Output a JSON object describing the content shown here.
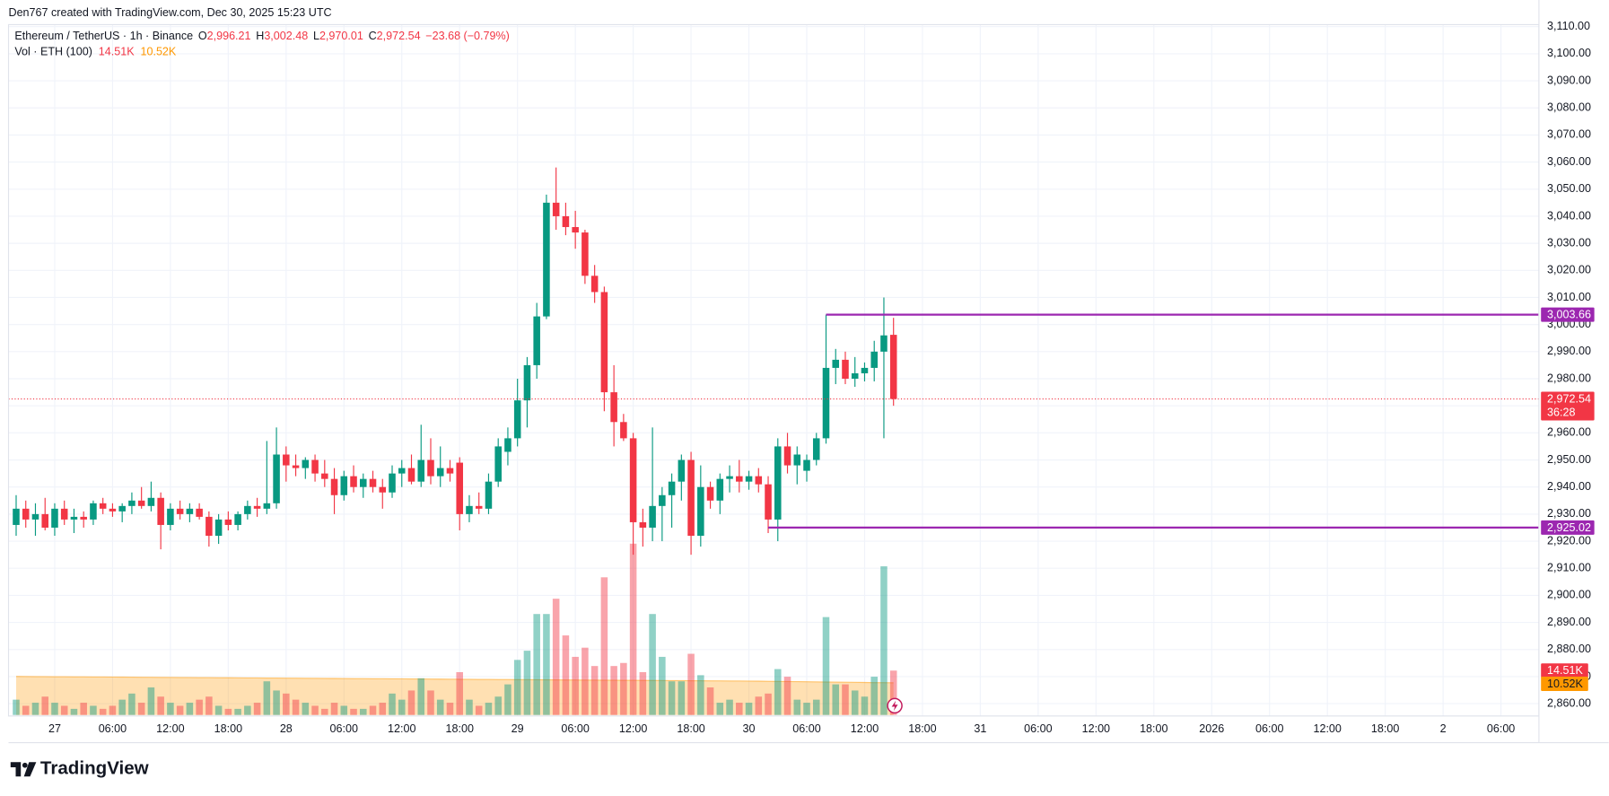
{
  "page": {
    "credit": "Den767 created with TradingView.com, Dec 30, 2025 15:23 UTC",
    "brand": "TradingView"
  },
  "chart_data": {
    "type": "candlestick",
    "symbol": "Ethereum / TetherUS · 1h · Binance",
    "ohlc_legend": [
      {
        "key": "O",
        "value": "2,996.21"
      },
      {
        "key": "H",
        "value": "3,002.48"
      },
      {
        "key": "L",
        "value": "2,970.01"
      },
      {
        "key": "C",
        "value": "2,972.54"
      }
    ],
    "change": "−23.68 (−0.79%)",
    "up_color": "#089981",
    "down_color": "#f23645",
    "open": [
      2926,
      2932,
      2928,
      2930,
      2925,
      2932,
      2928,
      2929,
      2928,
      2934,
      2932,
      2931,
      2933,
      2935,
      2933,
      2936,
      2926,
      2932,
      2930,
      2932,
      2929,
      2922,
      2928,
      2926,
      2930,
      2933,
      2932,
      2934,
      2952,
      2948,
      2947,
      2950,
      2945,
      2943,
      2937,
      2944,
      2940,
      2943,
      2940,
      2938,
      2945,
      2947,
      2942,
      2950,
      2944,
      2947,
      2949,
      2930,
      2933,
      2932,
      2942,
      2953,
      2958,
      2972,
      2985,
      3003,
      3045,
      3040,
      3036,
      3034,
      3018,
      3012,
      2975,
      2964,
      2958,
      2927,
      2925,
      2933,
      2937,
      2942,
      2950,
      2922,
      2940,
      2935,
      2943,
      2944,
      2942,
      2944,
      2941,
      2928,
      2955,
      2948,
      2946,
      2950,
      2958,
      2984,
      2987,
      2980,
      2982,
      2984,
      2990,
      2996.21
    ],
    "high": [
      2937,
      2935,
      2934,
      2936,
      2934,
      2935,
      2932,
      2931,
      2935,
      2936,
      2934,
      2934,
      2938,
      2940,
      2942,
      2938,
      2934,
      2935,
      2934,
      2934,
      2931,
      2930,
      2931,
      2931,
      2935,
      2936,
      2957,
      2962,
      2955,
      2952,
      2951,
      2952,
      2950,
      2947,
      2946,
      2948,
      2945,
      2946,
      2943,
      2948,
      2950,
      2952,
      2963,
      2958,
      2955,
      2950,
      2951,
      2937,
      2938,
      2945,
      2958,
      2962,
      2980,
      2988,
      3008,
      3048,
      3058,
      3045,
      3042,
      3035,
      3022,
      3014,
      2985,
      2967,
      2960,
      2932,
      2962,
      2940,
      2945,
      2952,
      2953,
      2948,
      2942,
      2945,
      2948,
      2950,
      2946,
      2947,
      2944,
      2958,
      2960,
      2955,
      2952,
      2960,
      3003.66,
      2991,
      2990,
      2988,
      2986,
      2994,
      3010,
      3002.48
    ],
    "low": [
      2922,
      2925,
      2922,
      2924,
      2922,
      2926,
      2923,
      2925,
      2926,
      2930,
      2929,
      2927,
      2930,
      2932,
      2931,
      2917,
      2924,
      2928,
      2927,
      2928,
      2918,
      2919,
      2924,
      2924,
      2928,
      2929,
      2930,
      2932,
      2942,
      2944,
      2943,
      2942,
      2940,
      2930,
      2935,
      2938,
      2936,
      2938,
      2932,
      2936,
      2940,
      2941,
      2940,
      2941,
      2940,
      2942,
      2924,
      2927,
      2930,
      2930,
      2940,
      2948,
      2955,
      2962,
      2980,
      3002,
      3035,
      3033,
      3028,
      3015,
      3008,
      2968,
      2955,
      2957,
      2915,
      2918,
      2920,
      2920,
      2925,
      2935,
      2915,
      2918,
      2932,
      2930,
      2938,
      2938,
      2939,
      2938,
      2923,
      2920,
      2945,
      2941,
      2942,
      2948,
      2956,
      2978,
      2978,
      2977,
      2979,
      2979,
      2958,
      2970.01
    ],
    "close": [
      2932,
      2928,
      2930,
      2925,
      2932,
      2928,
      2929,
      2928,
      2934,
      2932,
      2931,
      2933,
      2935,
      2933,
      2936,
      2926,
      2932,
      2930,
      2932,
      2929,
      2922,
      2928,
      2926,
      2930,
      2933,
      2932,
      2934,
      2952,
      2948,
      2947,
      2950,
      2945,
      2943,
      2937,
      2944,
      2940,
      2943,
      2940,
      2938,
      2945,
      2947,
      2942,
      2950,
      2944,
      2947,
      2945,
      2930,
      2933,
      2932,
      2942,
      2955,
      2958,
      2972,
      2985,
      3003,
      3045,
      3040,
      3036,
      3034,
      3018,
      3012,
      2975,
      2964,
      2958,
      2927,
      2925,
      2933,
      2937,
      2942,
      2950,
      2922,
      2940,
      2935,
      2943,
      2944,
      2942,
      2944,
      2941,
      2928,
      2955,
      2948,
      2952,
      2950,
      2958,
      2984,
      2987,
      2980,
      2982,
      2984,
      2990,
      2996,
      2972.54
    ],
    "volume": {
      "name": "Vol · ETH (100)",
      "last_label": "14.51K",
      "ma_label": "10.52K",
      "ma_color": "#ff9800",
      "values": [
        5,
        3,
        4,
        6,
        4,
        3,
        2,
        4,
        3,
        2,
        3,
        5,
        7,
        4,
        9,
        6,
        4,
        3,
        4,
        5,
        6,
        3,
        2,
        2,
        3,
        4,
        11,
        8,
        7,
        5,
        4,
        3,
        2,
        4,
        3,
        2,
        2,
        3,
        4,
        7,
        5,
        8,
        12,
        8,
        5,
        4,
        14,
        5,
        3,
        4,
        6,
        10,
        18,
        21,
        33,
        33,
        38,
        26,
        19,
        22,
        16,
        45,
        16,
        17,
        56,
        14,
        33,
        19,
        11,
        11,
        20,
        13,
        9,
        4,
        5,
        4,
        4,
        6,
        7,
        15,
        12.5,
        5,
        4,
        5,
        32,
        10,
        10,
        8,
        6,
        12.5,
        48.6,
        14.51
      ],
      "ma": [
        12.6,
        12.58,
        12.56,
        12.54,
        12.52,
        12.5,
        12.48,
        12.46,
        12.44,
        12.42,
        12.4,
        12.38,
        12.36,
        12.34,
        12.32,
        12.3,
        12.28,
        12.26,
        12.24,
        12.22,
        12.2,
        12.18,
        12.16,
        12.14,
        12.12,
        12.1,
        12.08,
        12.06,
        12.04,
        12.02,
        12,
        11.98,
        11.96,
        11.94,
        11.92,
        11.9,
        11.88,
        11.86,
        11.84,
        11.82,
        11.8,
        11.78,
        11.76,
        11.74,
        11.72,
        11.7,
        11.68,
        11.66,
        11.64,
        11.62,
        11.6,
        11.58,
        11.56,
        11.54,
        11.52,
        11.5,
        11.48,
        11.46,
        11.44,
        11.42,
        11.4,
        11.38,
        11.36,
        11.34,
        11.32,
        11.3,
        11.28,
        11.26,
        11.24,
        11.22,
        11.2,
        11.18,
        11.16,
        11.14,
        11.12,
        11.1,
        11.08,
        11.06,
        11.02,
        10.98,
        10.94,
        10.9,
        10.86,
        10.82,
        10.78,
        10.74,
        10.7,
        10.66,
        10.62,
        10.58,
        10.55,
        10.52
      ]
    },
    "levels": [
      {
        "value": 3003.66,
        "label": "3,003.66",
        "from": 84,
        "color": "#9c27b0"
      },
      {
        "value": 2925.02,
        "label": "2,925.02",
        "from": 78,
        "color": "#9c27b0"
      }
    ],
    "last_price_label": "2,972.54",
    "countdown": "36:28",
    "xlim": [
      -0.79,
      157.94
    ],
    "xticks": [
      {
        "value": 4,
        "label": "27"
      },
      {
        "value": 10,
        "label": "06:00"
      },
      {
        "value": 16,
        "label": "12:00"
      },
      {
        "value": 22,
        "label": "18:00"
      },
      {
        "value": 28,
        "label": "28"
      },
      {
        "value": 34,
        "label": "06:00"
      },
      {
        "value": 40,
        "label": "12:00"
      },
      {
        "value": 46,
        "label": "18:00"
      },
      {
        "value": 52,
        "label": "29"
      },
      {
        "value": 58,
        "label": "06:00"
      },
      {
        "value": 64,
        "label": "12:00"
      },
      {
        "value": 70,
        "label": "18:00"
      },
      {
        "value": 76,
        "label": "30"
      },
      {
        "value": 82,
        "label": "06:00"
      },
      {
        "value": 88,
        "label": "12:00"
      },
      {
        "value": 94,
        "label": "18:00"
      },
      {
        "value": 100,
        "label": "31"
      },
      {
        "value": 106,
        "label": "06:00"
      },
      {
        "value": 112,
        "label": "12:00"
      },
      {
        "value": 118,
        "label": "18:00"
      },
      {
        "value": 124,
        "label": "2026"
      },
      {
        "value": 130,
        "label": "06:00"
      },
      {
        "value": 136,
        "label": "12:00"
      },
      {
        "value": 142,
        "label": "18:00"
      },
      {
        "value": 148,
        "label": "2"
      },
      {
        "value": 154,
        "label": "06:00"
      }
    ],
    "ylim": [
      2855.45,
      3110.76
    ],
    "yticks": [
      {
        "value": 2860,
        "label": "2,860.00"
      },
      {
        "value": 2870,
        "label": "2,870.00"
      },
      {
        "value": 2880,
        "label": "2,880.00"
      },
      {
        "value": 2890,
        "label": "2,890.00"
      },
      {
        "value": 2900,
        "label": "2,900.00"
      },
      {
        "value": 2910,
        "label": "2,910.00"
      },
      {
        "value": 2920,
        "label": "2,920.00"
      },
      {
        "value": 2930,
        "label": "2,930.00"
      },
      {
        "value": 2940,
        "label": "2,940.00"
      },
      {
        "value": 2950,
        "label": "2,950.00"
      },
      {
        "value": 2960,
        "label": "2,960.00"
      },
      {
        "value": 2970,
        "label": "2,970.00"
      },
      {
        "value": 2980,
        "label": "2,980.00"
      },
      {
        "value": 2990,
        "label": "2,990.00"
      },
      {
        "value": 3000,
        "label": "3,000.00"
      },
      {
        "value": 3010,
        "label": "3,010.00"
      },
      {
        "value": 3020,
        "label": "3,020.00"
      },
      {
        "value": 3030,
        "label": "3,030.00"
      },
      {
        "value": 3040,
        "label": "3,040.00"
      },
      {
        "value": 3050,
        "label": "3,050.00"
      },
      {
        "value": 3060,
        "label": "3,060.00"
      },
      {
        "value": 3070,
        "label": "3,070.00"
      },
      {
        "value": 3080,
        "label": "3,080.00"
      },
      {
        "value": 3090,
        "label": "3,090.00"
      },
      {
        "value": 3100,
        "label": "3,100.00"
      },
      {
        "value": 3110,
        "label": "3,110.00"
      }
    ],
    "grid": true
  }
}
